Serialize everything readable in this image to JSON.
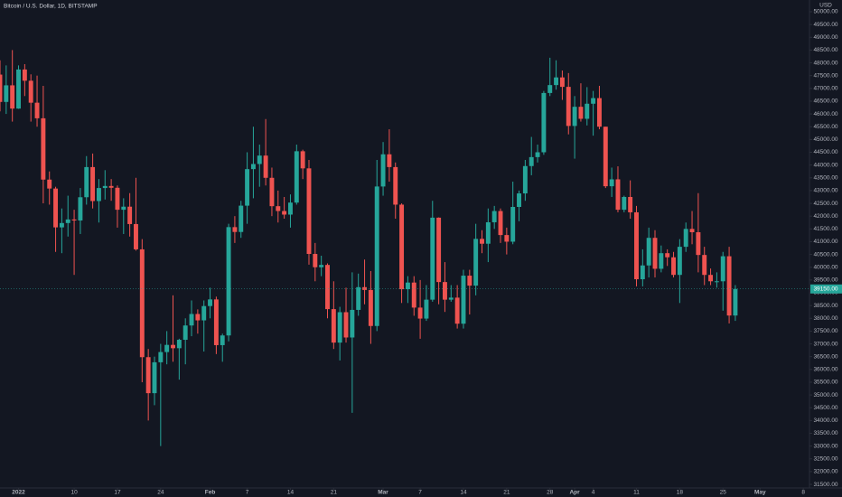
{
  "chart_data": {
    "type": "candlestick",
    "title": "Bitcoin / U.S. Dollar, 1D, BITSTAMP",
    "y_axis_label": "USD",
    "up_color": "#26a69a",
    "down_color": "#ef5350",
    "last_price_label": "39150.00",
    "x": [
      "2021-12-29",
      "2021-12-30",
      "2021-12-31",
      "2022-01-01",
      "2022-01-02",
      "2022-01-03",
      "2022-01-04",
      "2022-01-05",
      "2022-01-06",
      "2022-01-07",
      "2022-01-08",
      "2022-01-09",
      "2022-01-10",
      "2022-01-11",
      "2022-01-12",
      "2022-01-13",
      "2022-01-14",
      "2022-01-15",
      "2022-01-16",
      "2022-01-17",
      "2022-01-18",
      "2022-01-19",
      "2022-01-20",
      "2022-01-21",
      "2022-01-22",
      "2022-01-23",
      "2022-01-24",
      "2022-01-25",
      "2022-01-26",
      "2022-01-27",
      "2022-01-28",
      "2022-01-29",
      "2022-01-30",
      "2022-01-31",
      "2022-02-01",
      "2022-02-02",
      "2022-02-03",
      "2022-02-04",
      "2022-02-05",
      "2022-02-06",
      "2022-02-07",
      "2022-02-08",
      "2022-02-09",
      "2022-02-10",
      "2022-02-11",
      "2022-02-12",
      "2022-02-13",
      "2022-02-14",
      "2022-02-15",
      "2022-02-16",
      "2022-02-17",
      "2022-02-18",
      "2022-02-19",
      "2022-02-20",
      "2022-02-21",
      "2022-02-22",
      "2022-02-23",
      "2022-02-24",
      "2022-02-25",
      "2022-02-26",
      "2022-02-27",
      "2022-02-28",
      "2022-03-01",
      "2022-03-02",
      "2022-03-03",
      "2022-03-04",
      "2022-03-05",
      "2022-03-06",
      "2022-03-07",
      "2022-03-08",
      "2022-03-09",
      "2022-03-10",
      "2022-03-11",
      "2022-03-12",
      "2022-03-13",
      "2022-03-14",
      "2022-03-15",
      "2022-03-16",
      "2022-03-17",
      "2022-03-18",
      "2022-03-19",
      "2022-03-20",
      "2022-03-21",
      "2022-03-22",
      "2022-03-23",
      "2022-03-24",
      "2022-03-25",
      "2022-03-26",
      "2022-03-27",
      "2022-03-28",
      "2022-03-29",
      "2022-03-30",
      "2022-03-31",
      "2022-04-01",
      "2022-04-02",
      "2022-04-03",
      "2022-04-04",
      "2022-04-05",
      "2022-04-06",
      "2022-04-07",
      "2022-04-08",
      "2022-04-09",
      "2022-04-10",
      "2022-04-11",
      "2022-04-12",
      "2022-04-13",
      "2022-04-14",
      "2022-04-15",
      "2022-04-16",
      "2022-04-17",
      "2022-04-18",
      "2022-04-19",
      "2022-04-20",
      "2022-04-21",
      "2022-04-22",
      "2022-04-23",
      "2022-04-24",
      "2022-04-25",
      "2022-04-26",
      "2022-04-27"
    ],
    "open": [
      47540,
      46470,
      47120,
      46210,
      47740,
      47300,
      46440,
      45830,
      43430,
      43080,
      41560,
      41730,
      41870,
      41830,
      42740,
      43920,
      42590,
      43100,
      43180,
      43110,
      42250,
      42370,
      41690,
      40700,
      36480,
      35070,
      36280,
      36680,
      36960,
      36830,
      37160,
      37720,
      38170,
      37920,
      38480,
      38740,
      36950,
      37330,
      41570,
      41380,
      42410,
      43840,
      44040,
      44370,
      43500,
      42390,
      42200,
      42060,
      42530,
      44540,
      43870,
      40520,
      40000,
      40090,
      38360,
      37050,
      38240,
      37250,
      38330,
      39220,
      39110,
      37700,
      43160,
      44420,
      43920,
      42450,
      39140,
      39400,
      38420,
      37990,
      38730,
      41940,
      39420,
      38730,
      38810,
      37790,
      39670,
      39280,
      41110,
      40920,
      41760,
      42200,
      41260,
      41000,
      42360,
      42890,
      43960,
      44310,
      44500,
      46820,
      47130,
      47430,
      47060,
      45530,
      46280,
      45810,
      46400,
      46620,
      45500,
      43170,
      43440,
      42250,
      42750,
      42150,
      39530,
      40070,
      41150,
      39940,
      40550,
      40390,
      39700,
      40800,
      41500,
      41370,
      40480,
      39700,
      39450,
      39450,
      40430,
      38110
    ],
    "high": [
      48100,
      47900,
      48500,
      47900,
      47950,
      47550,
      47500,
      47100,
      43750,
      43150,
      42300,
      42800,
      42250,
      43100,
      44350,
      44450,
      43450,
      43800,
      43450,
      43200,
      42700,
      42900,
      43500,
      41100,
      36800,
      36500,
      37000,
      37500,
      38900,
      37200,
      38000,
      38700,
      38350,
      38700,
      39200,
      38850,
      37400,
      41700,
      42000,
      42600,
      44500,
      45500,
      44800,
      45800,
      43900,
      43000,
      42750,
      42850,
      44800,
      44600,
      44200,
      40950,
      40450,
      40150,
      39450,
      38450,
      39200,
      39800,
      39750,
      40300,
      39850,
      44200,
      44900,
      45400,
      44100,
      42500,
      39650,
      39650,
      39500,
      39300,
      42600,
      41950,
      40200,
      39300,
      39300,
      39900,
      39900,
      41700,
      41450,
      42300,
      42400,
      42300,
      41550,
      43350,
      43000,
      44200,
      45100,
      44800,
      46900,
      48200,
      48100,
      47700,
      47600,
      46700,
      47200,
      47050,
      46900,
      47100,
      45500,
      43900,
      43950,
      42800,
      43400,
      42400,
      40700,
      41550,
      41450,
      40850,
      40700,
      40600,
      41100,
      41750,
      42200,
      42900,
      40800,
      39950,
      39800,
      40600,
      40800,
      39300
    ],
    "low": [
      46100,
      46000,
      45700,
      46200,
      46700,
      45700,
      45500,
      42500,
      42450,
      40600,
      40550,
      41200,
      39700,
      41300,
      42450,
      42300,
      41750,
      42650,
      42600,
      41550,
      41300,
      41200,
      40650,
      35500,
      34000,
      34600,
      33000,
      36200,
      36300,
      35600,
      36200,
      37300,
      37400,
      36700,
      38000,
      36600,
      36300,
      37100,
      40950,
      41150,
      41700,
      42700,
      43150,
      43200,
      42000,
      41750,
      41900,
      41550,
      42450,
      43450,
      40100,
      39450,
      39650,
      38000,
      36800,
      36350,
      37050,
      34300,
      38100,
      38550,
      37000,
      37500,
      42800,
      43350,
      41900,
      38600,
      38600,
      38100,
      37200,
      37900,
      38650,
      38550,
      38250,
      38650,
      37600,
      37600,
      38150,
      38900,
      40550,
      40200,
      41500,
      40950,
      40500,
      40900,
      41800,
      42600,
      43600,
      44100,
      44400,
      46700,
      46950,
      46550,
      45200,
      44250,
      45700,
      45550,
      45150,
      45400,
      43100,
      42750,
      42150,
      42150,
      41900,
      39250,
      39250,
      39600,
      39600,
      39800,
      40050,
      39600,
      38600,
      40600,
      40900,
      39800,
      39300,
      39300,
      39200,
      38300,
      37800,
      37900
    ],
    "close": [
      46470,
      47120,
      46210,
      47740,
      47300,
      46440,
      45830,
      43430,
      43080,
      41560,
      41730,
      41870,
      41830,
      42740,
      43920,
      42590,
      43100,
      43180,
      43110,
      42250,
      42370,
      41690,
      40700,
      36480,
      35070,
      36280,
      36680,
      36960,
      36830,
      37160,
      37720,
      38170,
      37920,
      38480,
      38740,
      36950,
      37330,
      41570,
      41380,
      42410,
      43840,
      44040,
      44370,
      43500,
      42390,
      42200,
      42060,
      42530,
      44540,
      43870,
      40520,
      40000,
      40090,
      38360,
      37050,
      38240,
      37250,
      38330,
      39220,
      39110,
      37700,
      43160,
      44420,
      43920,
      42450,
      39140,
      39400,
      38420,
      37990,
      38730,
      41940,
      39420,
      38730,
      38810,
      37790,
      39670,
      39280,
      41110,
      40920,
      41760,
      42200,
      41260,
      41000,
      42360,
      42890,
      43960,
      44310,
      44500,
      46820,
      47130,
      47430,
      47060,
      45530,
      46280,
      45810,
      46400,
      46620,
      45500,
      43170,
      43440,
      42250,
      42750,
      42150,
      39530,
      40070,
      41150,
      39940,
      40550,
      40390,
      39700,
      40800,
      41500,
      41370,
      40480,
      39700,
      39450,
      39450,
      40430,
      38110,
      39150
    ],
    "xlim": [
      "2021-12-29",
      "2022-05-09"
    ],
    "xticks": [
      {
        "value": "2022-01-01",
        "label": "2022"
      },
      {
        "value": "2022-01-10",
        "label": "10"
      },
      {
        "value": "2022-01-17",
        "label": "17"
      },
      {
        "value": "2022-01-24",
        "label": "24"
      },
      {
        "value": "2022-02-01",
        "label": "Feb"
      },
      {
        "value": "2022-02-07",
        "label": "7"
      },
      {
        "value": "2022-02-14",
        "label": "14"
      },
      {
        "value": "2022-02-21",
        "label": "21"
      },
      {
        "value": "2022-03-01",
        "label": "Mar"
      },
      {
        "value": "2022-03-07",
        "label": "7"
      },
      {
        "value": "2022-03-14",
        "label": "14"
      },
      {
        "value": "2022-03-21",
        "label": "21"
      },
      {
        "value": "2022-03-28",
        "label": "28"
      },
      {
        "value": "2022-04-01",
        "label": "Apr"
      },
      {
        "value": "2022-04-04",
        "label": "4"
      },
      {
        "value": "2022-04-11",
        "label": "11"
      },
      {
        "value": "2022-04-18",
        "label": "18"
      },
      {
        "value": "2022-04-25",
        "label": "25"
      },
      {
        "value": "2022-05-01",
        "label": "May"
      },
      {
        "value": "2022-05-08",
        "label": "8"
      }
    ],
    "ylim": [
      31360,
      50460
    ],
    "yticks": [
      {
        "value": 31500,
        "label": "31500.00"
      },
      {
        "value": 32000,
        "label": "32000.00"
      },
      {
        "value": 32500,
        "label": "32500.00"
      },
      {
        "value": 33000,
        "label": "33000.00"
      },
      {
        "value": 33500,
        "label": "33500.00"
      },
      {
        "value": 34000,
        "label": "34000.00"
      },
      {
        "value": 34500,
        "label": "34500.00"
      },
      {
        "value": 35000,
        "label": "35000.00"
      },
      {
        "value": 35500,
        "label": "35500.00"
      },
      {
        "value": 36000,
        "label": "36000.00"
      },
      {
        "value": 36500,
        "label": "36500.00"
      },
      {
        "value": 37000,
        "label": "37000.00"
      },
      {
        "value": 37500,
        "label": "37500.00"
      },
      {
        "value": 38000,
        "label": "38000.00"
      },
      {
        "value": 38500,
        "label": "38500.00"
      },
      {
        "value": 39000,
        "label": "39000.00"
      },
      {
        "value": 39500,
        "label": "39500.00"
      },
      {
        "value": 40000,
        "label": "40000.00"
      },
      {
        "value": 40500,
        "label": "40500.00"
      },
      {
        "value": 41000,
        "label": "41000.00"
      },
      {
        "value": 41500,
        "label": "41500.00"
      },
      {
        "value": 42000,
        "label": "42000.00"
      },
      {
        "value": 42500,
        "label": "42500.00"
      },
      {
        "value": 43000,
        "label": "43000.00"
      },
      {
        "value": 43500,
        "label": "43500.00"
      },
      {
        "value": 44000,
        "label": "44000.00"
      },
      {
        "value": 44500,
        "label": "44500.00"
      },
      {
        "value": 45000,
        "label": "45000.00"
      },
      {
        "value": 45500,
        "label": "45500.00"
      },
      {
        "value": 46000,
        "label": "46000.00"
      },
      {
        "value": 46500,
        "label": "46500.00"
      },
      {
        "value": 47000,
        "label": "47000.00"
      },
      {
        "value": 47500,
        "label": "47500.00"
      },
      {
        "value": 48000,
        "label": "48000.00"
      },
      {
        "value": 48500,
        "label": "48500.00"
      },
      {
        "value": 49000,
        "label": "49000.00"
      },
      {
        "value": 49500,
        "label": "49500.00"
      },
      {
        "value": 50000,
        "label": "50000.00"
      }
    ]
  }
}
